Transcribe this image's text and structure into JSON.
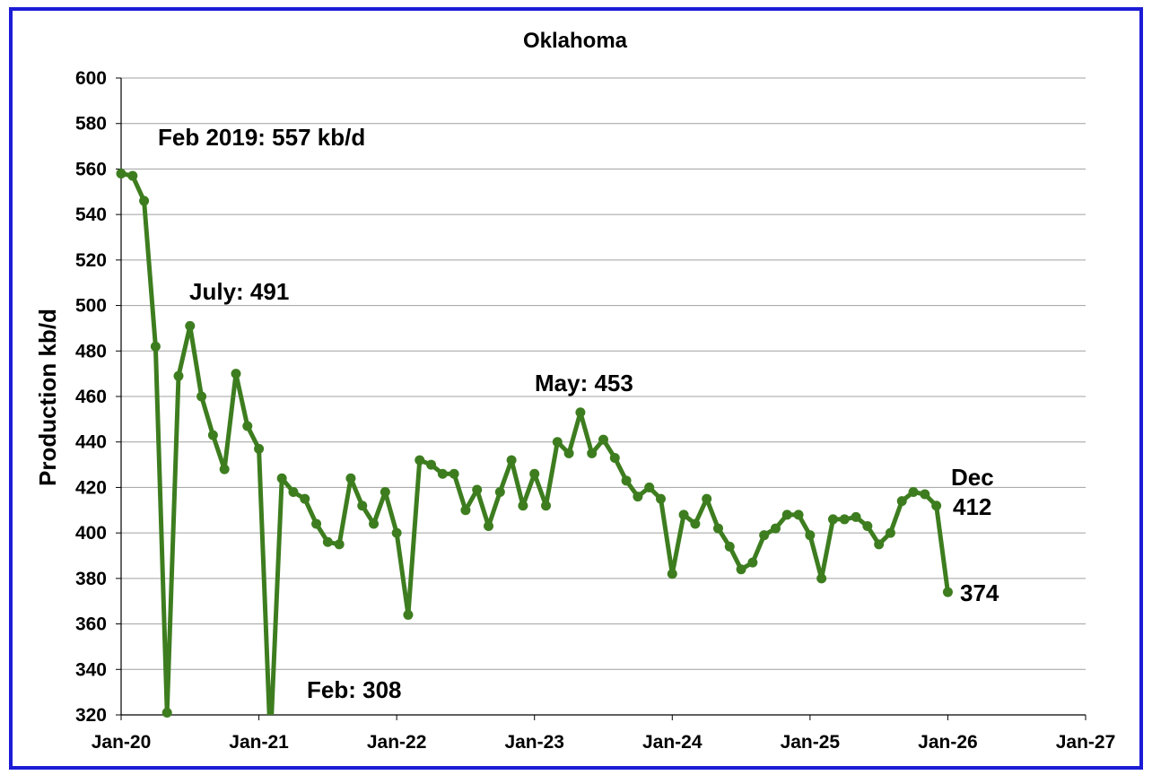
{
  "chart_data": {
    "type": "line",
    "title": "Oklahoma",
    "xlabel": "",
    "ylabel": "Production kb/d",
    "ylim": [
      320,
      600
    ],
    "yticks": [
      320,
      340,
      360,
      380,
      400,
      420,
      440,
      460,
      480,
      500,
      520,
      540,
      560,
      580,
      600
    ],
    "xlim": [
      "2020-01",
      "2027-01"
    ],
    "xticks": [
      "Jan-20",
      "Jan-21",
      "Jan-22",
      "Jan-23",
      "Jan-24",
      "Jan-25",
      "Jan-26",
      "Jan-27"
    ],
    "grid": "horizontal",
    "legend": "none",
    "colors": {
      "series": "#3d7d1f",
      "border": "#1c1cd6",
      "grid": "#a0a0a0"
    },
    "series": [
      {
        "x": [
          "2020-01",
          "2020-02",
          "2020-03",
          "2020-04",
          "2020-05",
          "2020-06",
          "2020-07",
          "2020-08",
          "2020-09",
          "2020-10",
          "2020-11",
          "2020-12",
          "2021-01",
          "2021-02",
          "2021-03",
          "2021-04",
          "2021-05",
          "2021-06",
          "2021-07",
          "2021-08",
          "2021-09",
          "2021-10",
          "2021-11",
          "2021-12",
          "2022-01",
          "2022-02",
          "2022-03",
          "2022-04",
          "2022-05",
          "2022-06",
          "2022-07",
          "2022-08",
          "2022-09",
          "2022-10",
          "2022-11",
          "2022-12",
          "2023-01",
          "2023-02",
          "2023-03",
          "2023-04",
          "2023-05",
          "2023-06",
          "2023-07",
          "2023-08",
          "2023-09",
          "2023-10",
          "2023-11",
          "2023-12",
          "2024-01",
          "2024-02",
          "2024-03",
          "2024-04",
          "2024-05",
          "2024-06",
          "2024-07",
          "2024-08",
          "2024-09",
          "2024-10",
          "2024-11",
          "2024-12",
          "2025-01",
          "2025-02",
          "2025-03",
          "2025-04",
          "2025-05",
          "2025-06",
          "2025-07",
          "2025-08",
          "2025-09",
          "2025-10",
          "2025-11",
          "2025-12",
          "2026-01"
        ],
        "values": [
          558,
          557,
          546,
          482,
          321,
          469,
          491,
          460,
          443,
          428,
          470,
          447,
          437,
          308,
          424,
          418,
          415,
          404,
          396,
          395,
          424,
          412,
          404,
          418,
          400,
          364,
          432,
          430,
          426,
          426,
          410,
          419,
          403,
          418,
          432,
          412,
          426,
          412,
          440,
          435,
          453,
          435,
          441,
          433,
          423,
          416,
          420,
          415,
          382,
          408,
          404,
          415,
          402,
          394,
          384,
          387,
          399,
          402,
          408,
          408,
          399,
          380,
          406,
          406,
          407,
          403,
          395,
          400,
          414,
          418,
          417,
          412,
          374
        ]
      }
    ],
    "annotations": [
      {
        "text": "Feb 2019: 557 kb/d",
        "x": "2020-04",
        "y": 572
      },
      {
        "text": "July: 491",
        "x": "2020-06",
        "y": 503
      },
      {
        "text": "Feb: 308",
        "x": "2021-03",
        "y": 328
      },
      {
        "text": "May: 453",
        "x": "2023-04",
        "y": 465
      },
      {
        "text": "Dec",
        "x": "2026-01",
        "y": 424
      },
      {
        "text": "412",
        "x": "2026-01",
        "y": 411
      },
      {
        "text": "374",
        "x": "2026-02",
        "y": 373
      }
    ]
  }
}
